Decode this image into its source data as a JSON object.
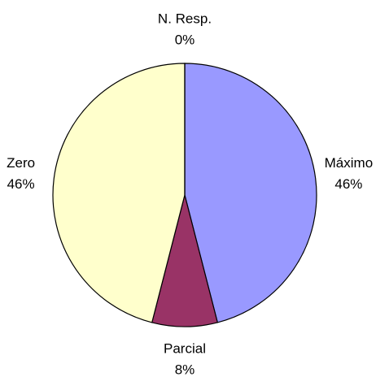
{
  "chart_data": {
    "type": "pie",
    "categories": [
      "Máximo",
      "Parcial",
      "Zero",
      "N. Resp."
    ],
    "values": [
      46,
      8,
      46,
      0
    ],
    "value_labels": [
      "46%",
      "8%",
      "46%",
      "0%"
    ],
    "colors": [
      "#9999ff",
      "#993366",
      "#ffffcc",
      "#ccffff"
    ]
  }
}
